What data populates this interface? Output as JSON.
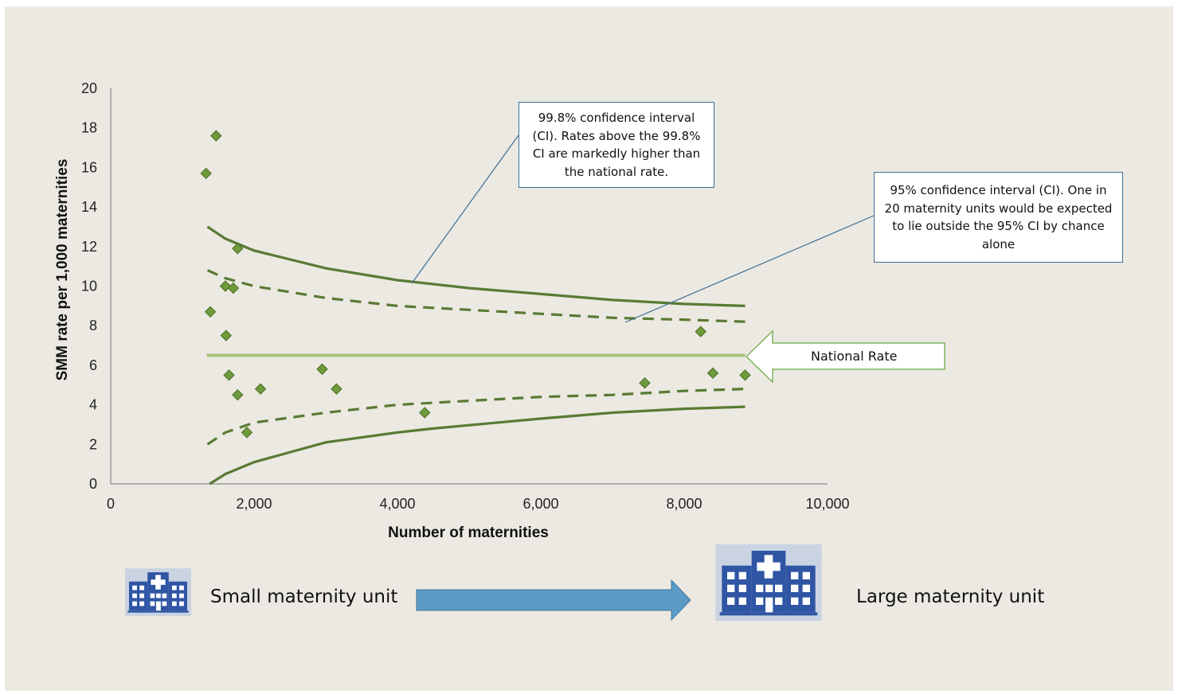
{
  "chart_data": {
    "type": "scatter",
    "xlabel": "Number of maternities",
    "ylabel": "SMM rate per 1,000  maternities",
    "xlim": [
      0,
      10000
    ],
    "ylim": [
      0,
      20
    ],
    "x_ticks": [
      "0",
      "2,000",
      "4,000",
      "6,000",
      "8,000",
      "10,000"
    ],
    "y_ticks": [
      "0",
      "2",
      "4",
      "6",
      "8",
      "10",
      "12",
      "14",
      "16",
      "18",
      "20"
    ],
    "x_tick_values": [
      0,
      2000,
      4000,
      6000,
      8000,
      10000
    ],
    "y_tick_values": [
      0,
      2,
      4,
      6,
      8,
      10,
      12,
      14,
      16,
      18,
      20
    ],
    "grid": false,
    "series": [
      {
        "kind": "points",
        "color": "#6e9a3b",
        "points": [
          [
            1330,
            15.7
          ],
          [
            1470,
            17.6
          ],
          [
            1390,
            8.7
          ],
          [
            1600,
            10.0
          ],
          [
            1710,
            9.9
          ],
          [
            1770,
            11.9
          ],
          [
            1610,
            7.5
          ],
          [
            1650,
            5.5
          ],
          [
            1770,
            4.5
          ],
          [
            1900,
            2.6
          ],
          [
            2090,
            4.8
          ],
          [
            2950,
            5.8
          ],
          [
            3150,
            4.8
          ],
          [
            4380,
            3.6
          ],
          [
            7450,
            5.1
          ],
          [
            8230,
            7.7
          ],
          [
            8400,
            5.6
          ],
          [
            8850,
            5.5
          ]
        ]
      },
      {
        "kind": "upper_99_8",
        "color": "#5a7a33",
        "points": [
          [
            1350,
            13.0
          ],
          [
            1600,
            12.4
          ],
          [
            2000,
            11.8
          ],
          [
            3000,
            10.9
          ],
          [
            4000,
            10.3
          ],
          [
            5000,
            9.9
          ],
          [
            6000,
            9.6
          ],
          [
            7000,
            9.3
          ],
          [
            8000,
            9.1
          ],
          [
            8850,
            9.0
          ]
        ]
      },
      {
        "kind": "upper_95",
        "color": "#5a7a33",
        "dashed": true,
        "points": [
          [
            1350,
            10.8
          ],
          [
            1600,
            10.4
          ],
          [
            2000,
            10.0
          ],
          [
            3000,
            9.4
          ],
          [
            4000,
            9.0
          ],
          [
            5000,
            8.8
          ],
          [
            6000,
            8.6
          ],
          [
            7000,
            8.4
          ],
          [
            8000,
            8.3
          ],
          [
            8850,
            8.2
          ]
        ]
      },
      {
        "kind": "national_rate",
        "color": "#a9c47d",
        "points": [
          [
            1340,
            6.5
          ],
          [
            8850,
            6.5
          ]
        ]
      },
      {
        "kind": "lower_95",
        "color": "#5a7a33",
        "dashed": true,
        "points": [
          [
            1350,
            2.0
          ],
          [
            1600,
            2.6
          ],
          [
            2000,
            3.1
          ],
          [
            3000,
            3.6
          ],
          [
            4000,
            4.0
          ],
          [
            5000,
            4.2
          ],
          [
            6000,
            4.4
          ],
          [
            7000,
            4.5
          ],
          [
            8000,
            4.7
          ],
          [
            8850,
            4.8
          ]
        ]
      },
      {
        "kind": "lower_99_8",
        "color": "#5a7a33",
        "points": [
          [
            1380,
            0.0
          ],
          [
            1600,
            0.5
          ],
          [
            2000,
            1.1
          ],
          [
            3000,
            2.1
          ],
          [
            4000,
            2.6
          ],
          [
            4500,
            2.8
          ],
          [
            6000,
            3.3
          ],
          [
            7000,
            3.6
          ],
          [
            8000,
            3.8
          ],
          [
            8850,
            3.9
          ]
        ]
      }
    ],
    "annotations": {
      "ci_998": "99.8% confidence interval (CI). Rates above the 99.8% CI are markedly higher than the national rate.",
      "ci_95": "95% confidence interval (CI). One in 20 maternity units would be expected to lie outside the 95% CI by chance alone",
      "national": "National Rate"
    }
  },
  "footer": {
    "small_label": "Small maternity unit",
    "large_label": "Large maternity unit",
    "hospital_icon": "hospital-icon",
    "arrow_icon": "arrow-right-icon",
    "arrow_color": "#5b9bc6",
    "icon_color": "#2f55a4"
  }
}
